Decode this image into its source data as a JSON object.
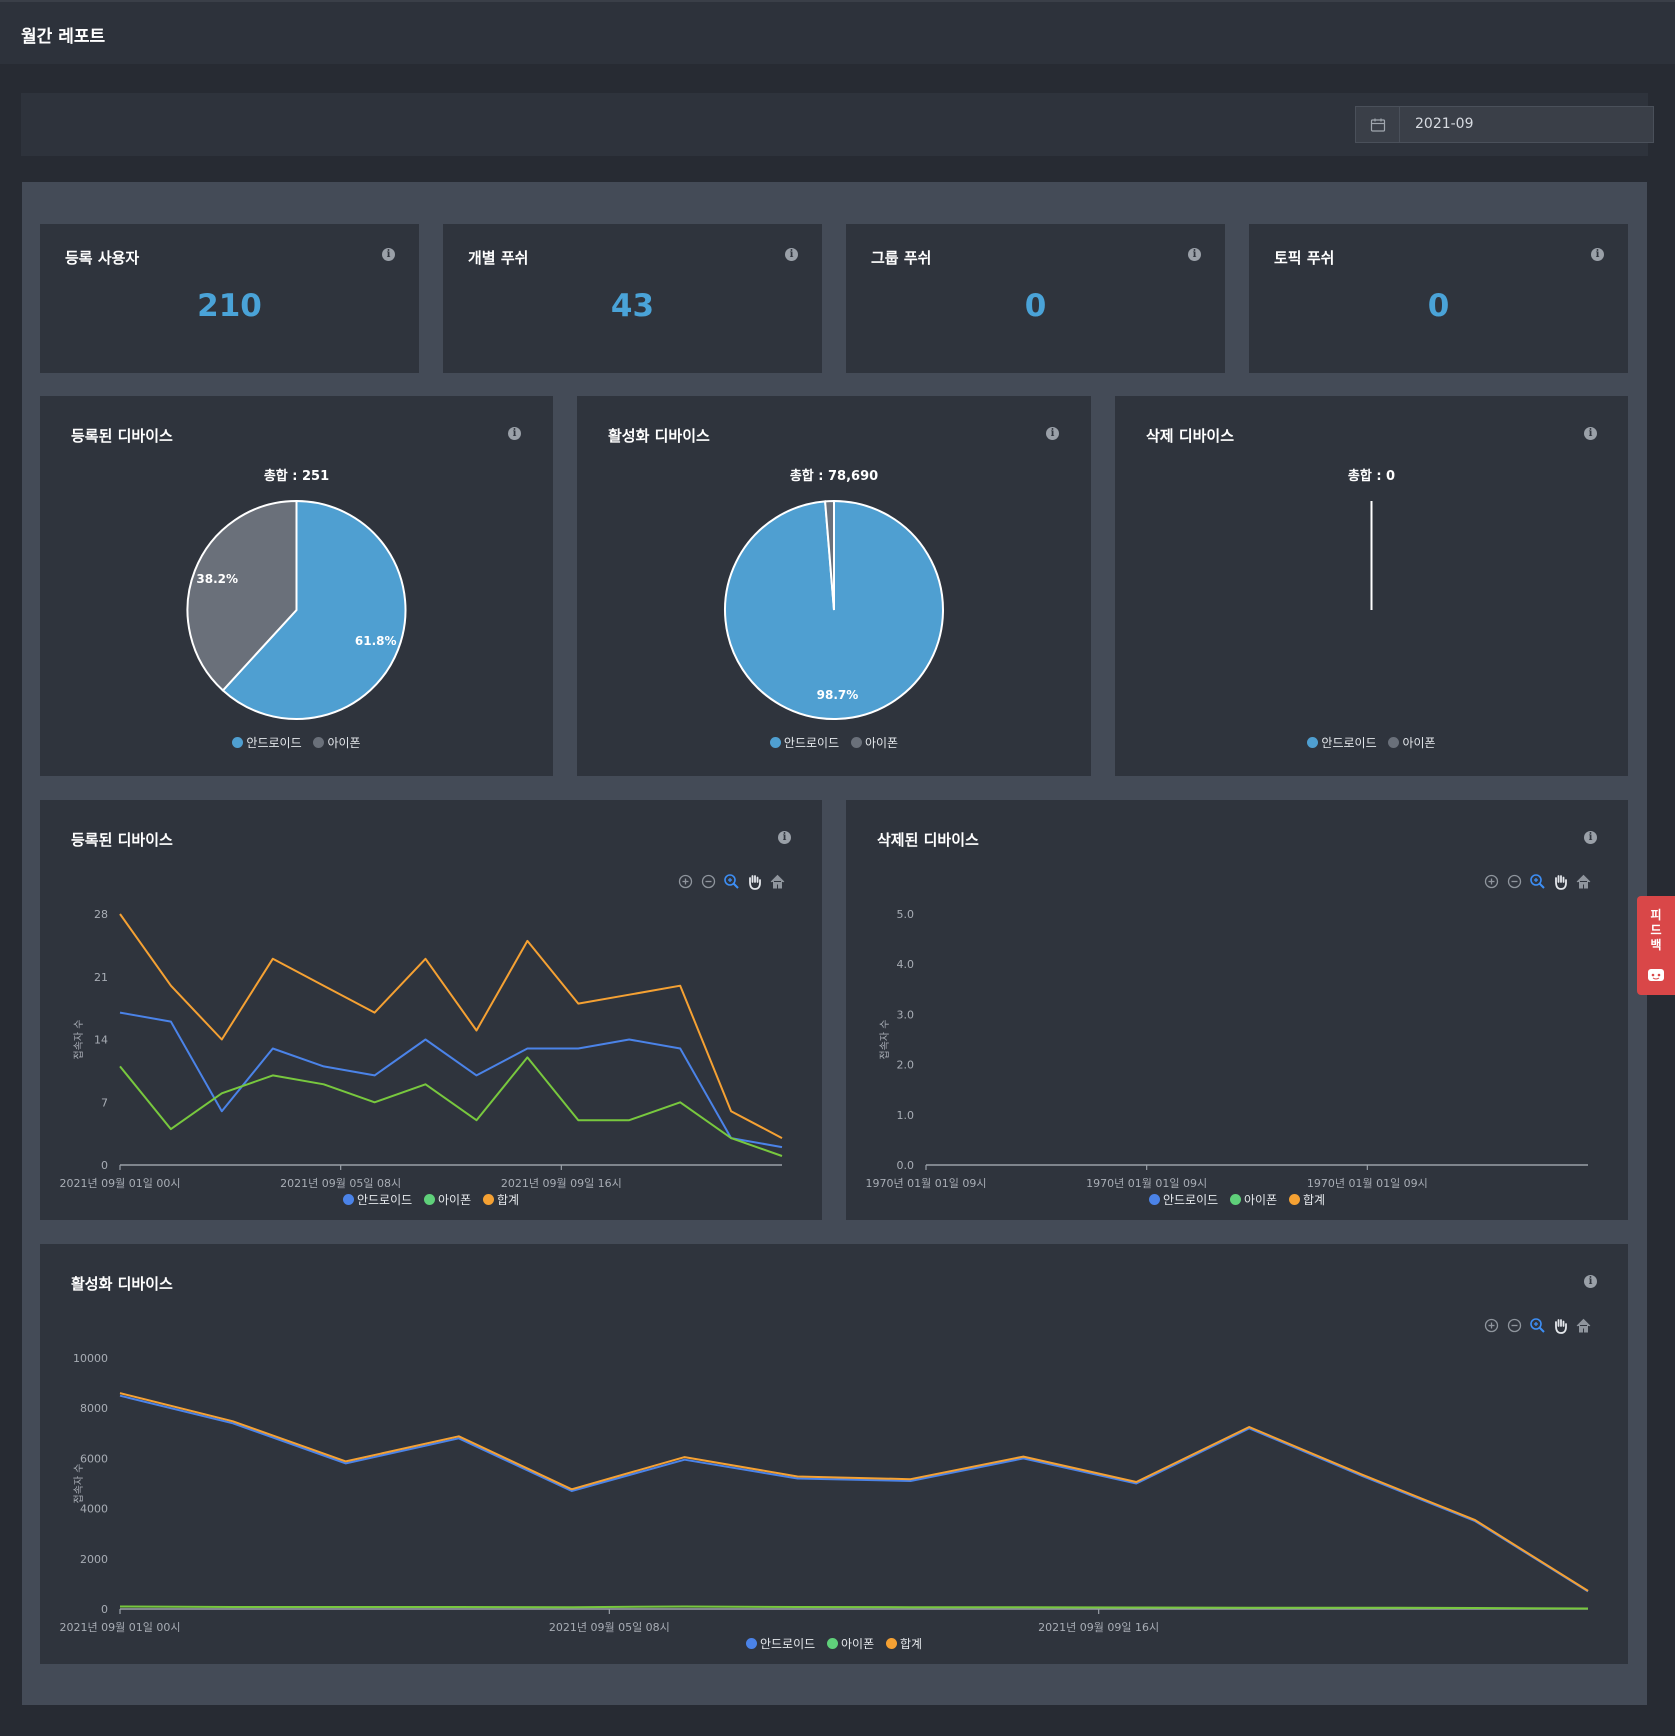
{
  "header": {
    "title": "월간 레포트"
  },
  "filter": {
    "month": "2021-09"
  },
  "colors": {
    "android": "#4f9fd1",
    "iphone": "#6a707a",
    "line_android": "#4b83e8",
    "line_iphone": "#78c83e",
    "line_total": "#f5a133"
  },
  "stats": [
    {
      "label": "등록 사용자",
      "value": "210"
    },
    {
      "label": "개별 푸쉬",
      "value": "43"
    },
    {
      "label": "그룹 푸쉬",
      "value": "0"
    },
    {
      "label": "토픽 푸쉬",
      "value": "0"
    }
  ],
  "pies": [
    {
      "title": "등록된 디바이스",
      "total": "총합 : 251",
      "android_pct": 61.8,
      "iphone_pct": 38.2,
      "android_label": "61.8%",
      "iphone_label": "38.2%"
    },
    {
      "title": "활성화 디바이스",
      "total": "총합 : 78,690",
      "android_pct": 98.7,
      "iphone_pct": 1.3,
      "android_label": "98.7%",
      "iphone_label": ""
    },
    {
      "title": "삭제 디바이스",
      "total": "총합 : 0",
      "android_pct": 0,
      "iphone_pct": 0,
      "android_label": "",
      "iphone_label": ""
    }
  ],
  "legend": {
    "android": "안드로이드",
    "iphone": "아이폰",
    "total": "합계"
  },
  "line_charts": {
    "registered": {
      "title": "등록된 디바이스"
    },
    "deleted": {
      "title": "삭제된 디바이스"
    },
    "active": {
      "title": "활성화 디바이스"
    }
  },
  "feedback": {
    "label": "피드백"
  },
  "chart_data": [
    {
      "type": "line",
      "title": "등록된 디바이스",
      "ylabel": "접속자 수",
      "ylim": [
        0,
        28
      ],
      "yticks": [
        "0",
        "7",
        "14",
        "21",
        "28"
      ],
      "xtick_labels": [
        "2021년 09월 01일 00시",
        "2021년 09월 05일 08시",
        "2021년 09월 09일 16시"
      ],
      "x": [
        0,
        1,
        2,
        3,
        4,
        5,
        6,
        7,
        8,
        9,
        10,
        11,
        12,
        13
      ],
      "series": [
        {
          "name": "안드로이드",
          "values": [
            17,
            16,
            6,
            13,
            11,
            10,
            14,
            10,
            13,
            13,
            14,
            13,
            3,
            2
          ]
        },
        {
          "name": "아이폰",
          "values": [
            11,
            4,
            8,
            10,
            9,
            7,
            9,
            5,
            12,
            5,
            5,
            7,
            3,
            1
          ]
        },
        {
          "name": "합계",
          "values": [
            28,
            20,
            14,
            23,
            20,
            17,
            23,
            15,
            25,
            18,
            19,
            20,
            6,
            3
          ]
        }
      ]
    },
    {
      "type": "line",
      "title": "삭제된 디바이스",
      "ylabel": "접속자 수",
      "ylim": [
        0,
        5
      ],
      "yticks": [
        "0.0",
        "1.0",
        "2.0",
        "3.0",
        "4.0",
        "5.0"
      ],
      "xtick_labels": [
        "1970년 01월 01일 09시",
        "1970년 01월 01일 09시",
        "1970년 01월 01일 09시"
      ],
      "series": []
    },
    {
      "type": "line",
      "title": "활성화 디바이스",
      "ylabel": "접속자 수",
      "ylim": [
        0,
        10000
      ],
      "yticks": [
        "0",
        "2000",
        "4000",
        "6000",
        "8000",
        "10000"
      ],
      "xtick_labels": [
        "2021년 09월 01일 00시",
        "2021년 09월 05일 08시",
        "2021년 09월 09일 16시"
      ],
      "x": [
        0,
        1,
        2,
        3,
        4,
        5,
        6,
        7,
        8,
        9,
        10,
        11,
        12,
        13
      ],
      "series": [
        {
          "name": "안드로이드",
          "values": [
            8500,
            7400,
            5800,
            6800,
            4700,
            5950,
            5200,
            5100,
            6000,
            5000,
            7200,
            5300,
            3500,
            700
          ]
        },
        {
          "name": "아이폰",
          "values": [
            100,
            80,
            80,
            80,
            70,
            100,
            80,
            70,
            70,
            60,
            50,
            50,
            40,
            20
          ]
        },
        {
          "name": "합계",
          "values": [
            8600,
            7480,
            5880,
            6880,
            4770,
            6050,
            5280,
            5170,
            6070,
            5060,
            7250,
            5350,
            3540,
            720
          ]
        }
      ]
    }
  ]
}
